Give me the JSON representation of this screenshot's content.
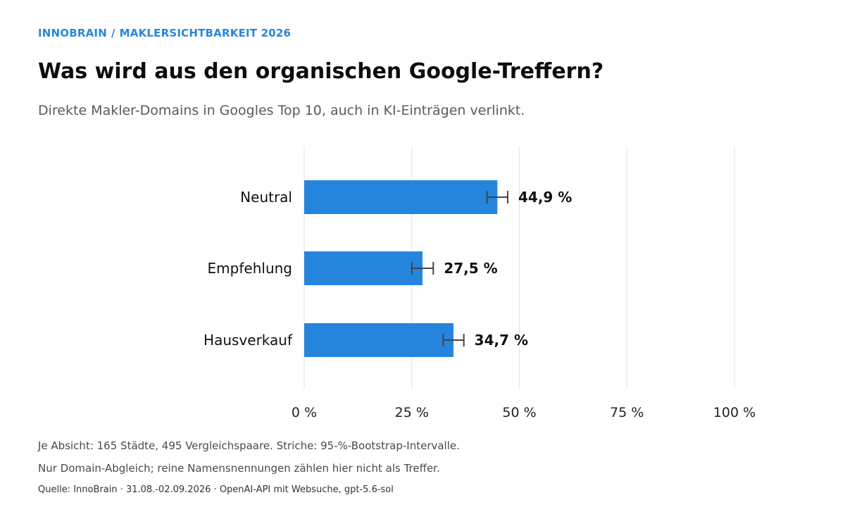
{
  "header": {
    "kicker_brand": "INNOBRAIN",
    "kicker_separator": "/",
    "kicker_topic": "MAKLERSICHTBARKEIT 2026",
    "title": "Was wird aus den organischen Google-Treffern?",
    "subtitle": "Direkte Makler-Domains in Googles Top 10, auch in KI-Einträgen verlinkt."
  },
  "footer": {
    "note1": "Je Absicht: 165 Städte, 495 Vergleichspaare. Striche: 95-%-Bootstrap-Intervalle.",
    "note2": "Nur Domain-Abgleich; reine Namensnennungen zählen hier nicht als Treffer.",
    "source": "Quelle: InnoBrain · 31.08.-02.09.2026 · OpenAI-API mit Websuche, gpt-5.6-sol"
  },
  "colors": {
    "bar": "#2585dd",
    "grid": "#e3e3e3",
    "errorbar": "#444444",
    "kicker": "#2a86d9"
  },
  "chart_data": {
    "type": "bar",
    "orientation": "horizontal",
    "categories": [
      "Neutral",
      "Empfehlung",
      "Hausverkauf"
    ],
    "values": [
      44.9,
      27.5,
      34.7
    ],
    "value_labels": [
      "44,9 %",
      "27,5 %",
      "34,7 %"
    ],
    "error_low": [
      42.5,
      25.0,
      32.3
    ],
    "error_high": [
      47.3,
      30.0,
      37.1
    ],
    "xlim": [
      0,
      100
    ],
    "xticks": [
      0,
      25,
      50,
      75,
      100
    ],
    "xtick_labels": [
      "0 %",
      "25 %",
      "50 %",
      "75 %",
      "100 %"
    ],
    "grid": true
  }
}
